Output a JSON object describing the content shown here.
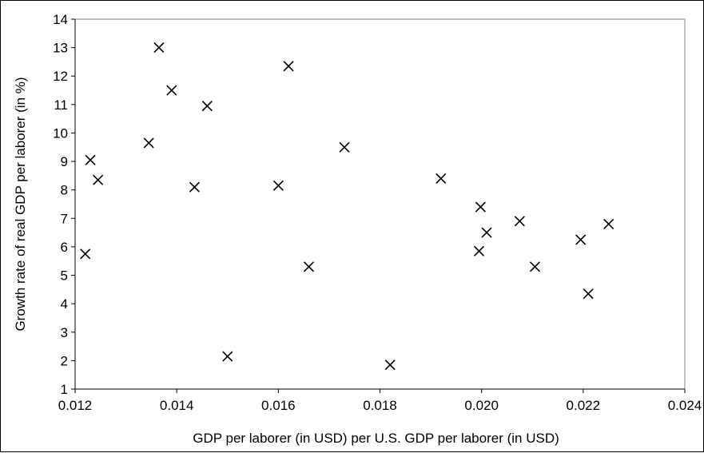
{
  "chart_data": {
    "type": "scatter",
    "title": "",
    "xlabel": "GDP per laborer (in USD) per U.S. GDP per laborer (in USD)",
    "ylabel": "Growth rate of real GDP per laborer (in %)",
    "xlim": [
      0.012,
      0.024
    ],
    "ylim": [
      1,
      14
    ],
    "x_ticks": [
      "0.012",
      "0.014",
      "0.016",
      "0.018",
      "0.020",
      "0.022",
      "0.024"
    ],
    "y_ticks": [
      "1",
      "2",
      "3",
      "4",
      "5",
      "6",
      "7",
      "8",
      "9",
      "10",
      "11",
      "12",
      "13",
      "14"
    ],
    "grid": false,
    "legend": "none",
    "marker": "x",
    "colors": {
      "marker": "#000000",
      "axis": "#808080",
      "background": "#ffffff"
    },
    "points": [
      {
        "x": 0.0122,
        "y": 5.75
      },
      {
        "x": 0.0123,
        "y": 9.05
      },
      {
        "x": 0.01245,
        "y": 8.35
      },
      {
        "x": 0.01345,
        "y": 9.65
      },
      {
        "x": 0.01365,
        "y": 13.0
      },
      {
        "x": 0.0139,
        "y": 11.5
      },
      {
        "x": 0.01435,
        "y": 8.1
      },
      {
        "x": 0.0146,
        "y": 10.95
      },
      {
        "x": 0.015,
        "y": 2.15
      },
      {
        "x": 0.016,
        "y": 8.15
      },
      {
        "x": 0.0162,
        "y": 12.35
      },
      {
        "x": 0.0166,
        "y": 5.3
      },
      {
        "x": 0.0173,
        "y": 9.5
      },
      {
        "x": 0.0182,
        "y": 1.85
      },
      {
        "x": 0.0192,
        "y": 8.4
      },
      {
        "x": 0.01995,
        "y": 5.85
      },
      {
        "x": 0.01998,
        "y": 7.4
      },
      {
        "x": 0.0201,
        "y": 6.5
      },
      {
        "x": 0.02075,
        "y": 6.9
      },
      {
        "x": 0.02105,
        "y": 5.3
      },
      {
        "x": 0.02195,
        "y": 6.25
      },
      {
        "x": 0.0221,
        "y": 4.35
      },
      {
        "x": 0.0225,
        "y": 6.8
      }
    ]
  }
}
